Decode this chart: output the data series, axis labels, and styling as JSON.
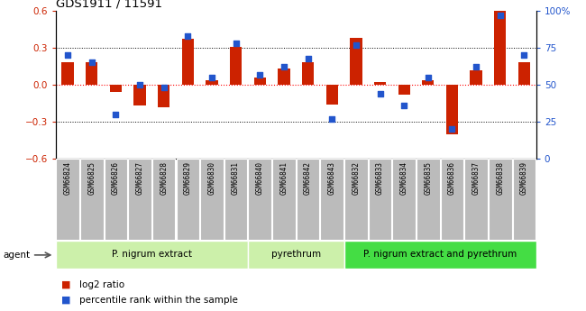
{
  "title": "GDS1911 / 11591",
  "samples": [
    "GSM66824",
    "GSM66825",
    "GSM66826",
    "GSM66827",
    "GSM66828",
    "GSM66829",
    "GSM66830",
    "GSM66831",
    "GSM66840",
    "GSM66841",
    "GSM66842",
    "GSM66843",
    "GSM66832",
    "GSM66833",
    "GSM66834",
    "GSM66835",
    "GSM66836",
    "GSM66837",
    "GSM66838",
    "GSM66839"
  ],
  "log2_ratio": [
    0.18,
    0.18,
    -0.06,
    -0.17,
    -0.18,
    0.37,
    0.04,
    0.31,
    0.06,
    0.13,
    0.18,
    -0.16,
    0.38,
    0.02,
    -0.08,
    0.04,
    -0.4,
    0.12,
    0.6,
    0.18
  ],
  "pct_rank": [
    70,
    65,
    30,
    50,
    48,
    83,
    55,
    78,
    57,
    62,
    68,
    27,
    77,
    44,
    36,
    55,
    20,
    62,
    97,
    70
  ],
  "group_boundaries": [
    0,
    8,
    12,
    20
  ],
  "group_labels": [
    "P. nigrum extract",
    "pyrethrum",
    "P. nigrum extract and pyrethrum"
  ],
  "group_colors": [
    "#ccf0aa",
    "#ccf0aa",
    "#44dd44"
  ],
  "bar_color": "#cc2200",
  "dot_color": "#2255cc",
  "tick_box_color": "#bbbbbb",
  "ylim": [
    -0.6,
    0.6
  ],
  "y2lim": [
    0,
    100
  ],
  "yticks": [
    -0.6,
    -0.3,
    0.0,
    0.3,
    0.6
  ],
  "y2ticks": [
    0,
    25,
    50,
    75,
    100
  ],
  "legend_log2": "log2 ratio",
  "legend_pct": "percentile rank within the sample",
  "agent_label": "agent",
  "bg_color": "#ffffff"
}
